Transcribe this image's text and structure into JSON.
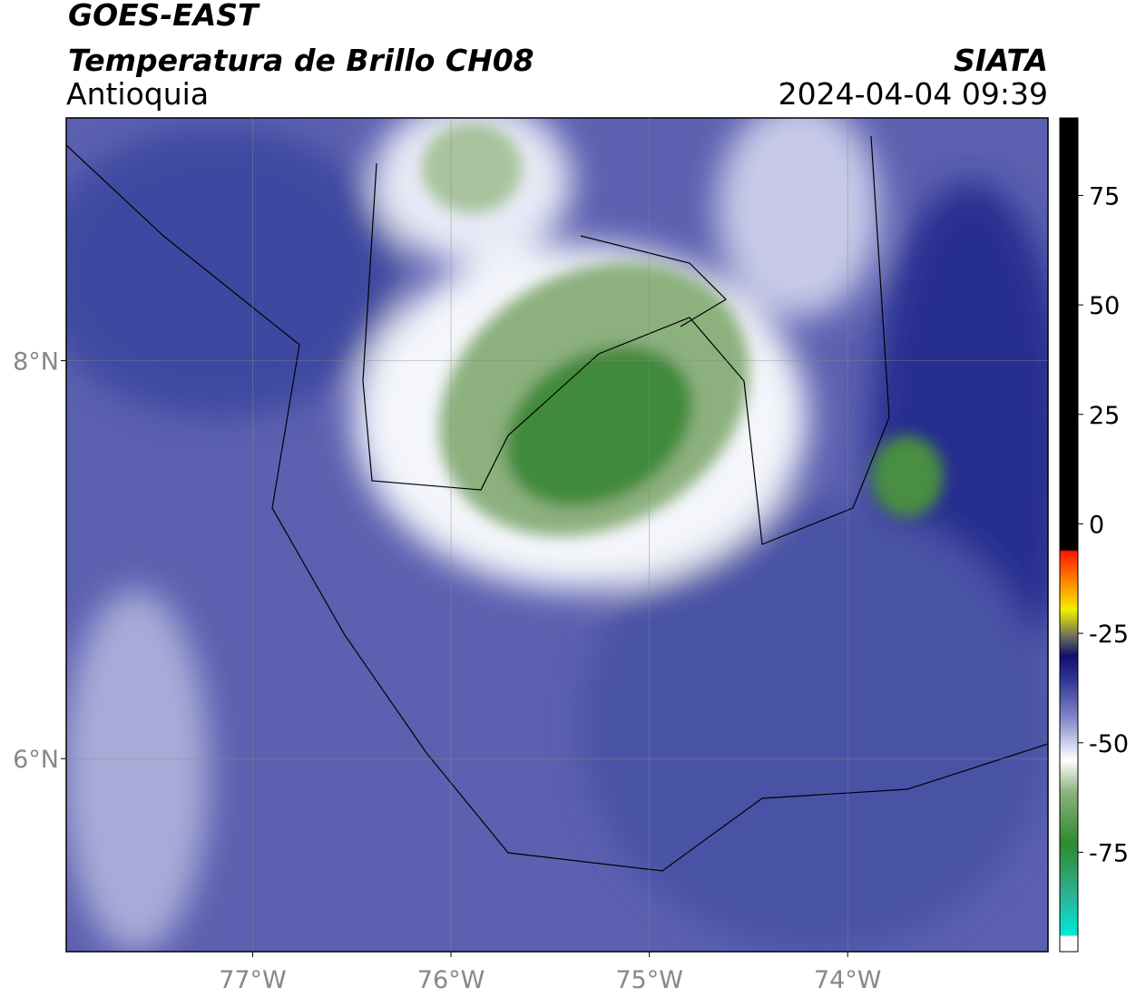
{
  "header": {
    "title": "GOES-EAST",
    "subtitle": "Temperatura de Brillo CH08",
    "region": "Antioquia",
    "source": "SIATA",
    "datetime": "2024-04-04 09:39"
  },
  "map": {
    "xlim": [
      -77.94,
      -72.99
    ],
    "ylim": [
      5.03,
      9.22
    ],
    "xticks": [
      {
        "value": -77,
        "label": "77°W"
      },
      {
        "value": -76,
        "label": "76°W"
      },
      {
        "value": -75,
        "label": "75°W"
      },
      {
        "value": -74,
        "label": "74°W"
      }
    ],
    "yticks": [
      {
        "value": 8,
        "label": "8°N"
      },
      {
        "value": 6,
        "label": "6°N"
      }
    ],
    "grid": true
  },
  "colorbar": {
    "lim": [
      -97.7,
      92.7
    ],
    "ticks": [
      75,
      50,
      25,
      0,
      -25,
      -50,
      -75
    ]
  }
}
